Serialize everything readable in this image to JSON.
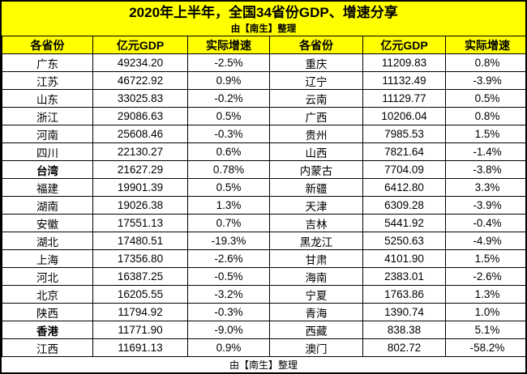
{
  "title": "2020年上半年，全国34省份GDP、增速分享",
  "subtitle": "由【南生】整理",
  "footer_note": "由【南生】整理",
  "colors": {
    "banner_bg": "#FFFF00",
    "header_bg": "#FFFF00",
    "border": "#000000",
    "text": "#000000",
    "row_bg": "#FFFFFF"
  },
  "chart_data": {
    "type": "table",
    "title": "2020年上半年，全国34省份GDP、增速分享",
    "columns": [
      "各省份",
      "亿元GDP",
      "实际增速",
      "各省份",
      "亿元GDP",
      "实际增速"
    ],
    "unit": "亿元",
    "rows": [
      {
        "left": {
          "province": "广东",
          "gdp": "49234.20",
          "growth": "-2.5%"
        },
        "right": {
          "province": "重庆",
          "gdp": "11209.83",
          "growth": "0.8%"
        }
      },
      {
        "left": {
          "province": "江苏",
          "gdp": "46722.92",
          "growth": "0.9%"
        },
        "right": {
          "province": "辽宁",
          "gdp": "11132.49",
          "growth": "-3.9%"
        }
      },
      {
        "left": {
          "province": "山东",
          "gdp": "33025.83",
          "growth": "-0.2%"
        },
        "right": {
          "province": "云南",
          "gdp": "11129.77",
          "growth": "0.5%"
        }
      },
      {
        "left": {
          "province": "浙江",
          "gdp": "29086.63",
          "growth": "0.5%"
        },
        "right": {
          "province": "广西",
          "gdp": "10206.04",
          "growth": "0.8%"
        }
      },
      {
        "left": {
          "province": "河南",
          "gdp": "25608.46",
          "growth": "-0.3%"
        },
        "right": {
          "province": "贵州",
          "gdp": "7985.53",
          "growth": "1.5%"
        }
      },
      {
        "left": {
          "province": "四川",
          "gdp": "22130.27",
          "growth": "0.6%"
        },
        "right": {
          "province": "山西",
          "gdp": "7821.64",
          "growth": "-1.4%"
        }
      },
      {
        "left": {
          "province": "台湾",
          "gdp": "21627.29",
          "growth": "0.78%",
          "bold": true
        },
        "right": {
          "province": "内蒙古",
          "gdp": "7704.09",
          "growth": "-3.8%"
        }
      },
      {
        "left": {
          "province": "福建",
          "gdp": "19901.39",
          "growth": "0.5%"
        },
        "right": {
          "province": "新疆",
          "gdp": "6412.80",
          "growth": "3.3%"
        }
      },
      {
        "left": {
          "province": "湖南",
          "gdp": "19026.38",
          "growth": "1.3%"
        },
        "right": {
          "province": "天津",
          "gdp": "6309.28",
          "growth": "-3.9%"
        }
      },
      {
        "left": {
          "province": "安徽",
          "gdp": "17551.13",
          "growth": "0.7%"
        },
        "right": {
          "province": "吉林",
          "gdp": "5441.92",
          "growth": "-0.4%"
        }
      },
      {
        "left": {
          "province": "湖北",
          "gdp": "17480.51",
          "growth": "-19.3%"
        },
        "right": {
          "province": "黑龙江",
          "gdp": "5250.63",
          "growth": "-4.9%"
        }
      },
      {
        "left": {
          "province": "上海",
          "gdp": "17356.80",
          "growth": "-2.6%"
        },
        "right": {
          "province": "甘肃",
          "gdp": "4101.90",
          "growth": "1.5%"
        }
      },
      {
        "left": {
          "province": "河北",
          "gdp": "16387.25",
          "growth": "-0.5%"
        },
        "right": {
          "province": "海南",
          "gdp": "2383.01",
          "growth": "-2.6%"
        }
      },
      {
        "left": {
          "province": "北京",
          "gdp": "16205.55",
          "growth": "-3.2%"
        },
        "right": {
          "province": "宁夏",
          "gdp": "1763.86",
          "growth": "1.3%"
        }
      },
      {
        "left": {
          "province": "陕西",
          "gdp": "11794.92",
          "growth": "-0.3%"
        },
        "right": {
          "province": "青海",
          "gdp": "1390.74",
          "growth": "1.0%"
        }
      },
      {
        "left": {
          "province": "香港",
          "gdp": "11771.90",
          "growth": "-9.0%",
          "bold": true
        },
        "right": {
          "province": "西藏",
          "gdp": "838.38",
          "growth": "5.1%"
        }
      },
      {
        "left": {
          "province": "江西",
          "gdp": "11691.13",
          "growth": "0.9%"
        },
        "right": {
          "province": "澳门",
          "gdp": "802.72",
          "growth": "-58.2%"
        }
      }
    ]
  }
}
